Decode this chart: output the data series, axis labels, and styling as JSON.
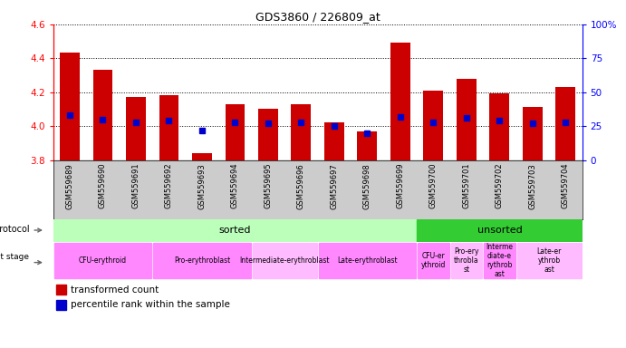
{
  "title": "GDS3860 / 226809_at",
  "samples": [
    "GSM559689",
    "GSM559690",
    "GSM559691",
    "GSM559692",
    "GSM559693",
    "GSM559694",
    "GSM559695",
    "GSM559696",
    "GSM559697",
    "GSM559698",
    "GSM559699",
    "GSM559700",
    "GSM559701",
    "GSM559702",
    "GSM559703",
    "GSM559704"
  ],
  "transformed_count": [
    4.43,
    4.33,
    4.17,
    4.18,
    3.84,
    4.13,
    4.1,
    4.13,
    4.02,
    3.97,
    4.49,
    4.21,
    4.28,
    4.19,
    4.11,
    4.23
  ],
  "percentile_rank": [
    33,
    30,
    28,
    29,
    22,
    28,
    27,
    28,
    25,
    20,
    32,
    28,
    31,
    29,
    27,
    28
  ],
  "ymin": 3.8,
  "ymax": 4.6,
  "bar_color": "#cc0000",
  "dot_color": "#0000cc",
  "protocol": [
    {
      "label": "sorted",
      "start": 0,
      "end": 11,
      "color": "#bbffbb"
    },
    {
      "label": "unsorted",
      "start": 11,
      "end": 16,
      "color": "#33cc33"
    }
  ],
  "dev_stage_sorted": [
    {
      "label": "CFU-erythroid",
      "start": 0,
      "end": 3,
      "color": "#ff88ff"
    },
    {
      "label": "Pro-erythroblast",
      "start": 3,
      "end": 6,
      "color": "#ff88ff"
    },
    {
      "label": "Intermediate-erythroblast",
      "start": 6,
      "end": 8,
      "color": "#ffbbff"
    },
    {
      "label": "Late-erythroblast",
      "start": 8,
      "end": 11,
      "color": "#ff88ff"
    }
  ],
  "dev_stage_unsorted": [
    {
      "label": "CFU-er\nythroid",
      "start": 11,
      "end": 12,
      "color": "#ff88ff"
    },
    {
      "label": "Pro-ery\nthrobla\nst",
      "start": 12,
      "end": 13,
      "color": "#ffbbff"
    },
    {
      "label": "Interme\ndiate-e\nrythrob\nast",
      "start": 13,
      "end": 14,
      "color": "#ff88ff"
    },
    {
      "label": "Late-er\nythrob\nast",
      "start": 14,
      "end": 16,
      "color": "#ffbbff"
    }
  ]
}
